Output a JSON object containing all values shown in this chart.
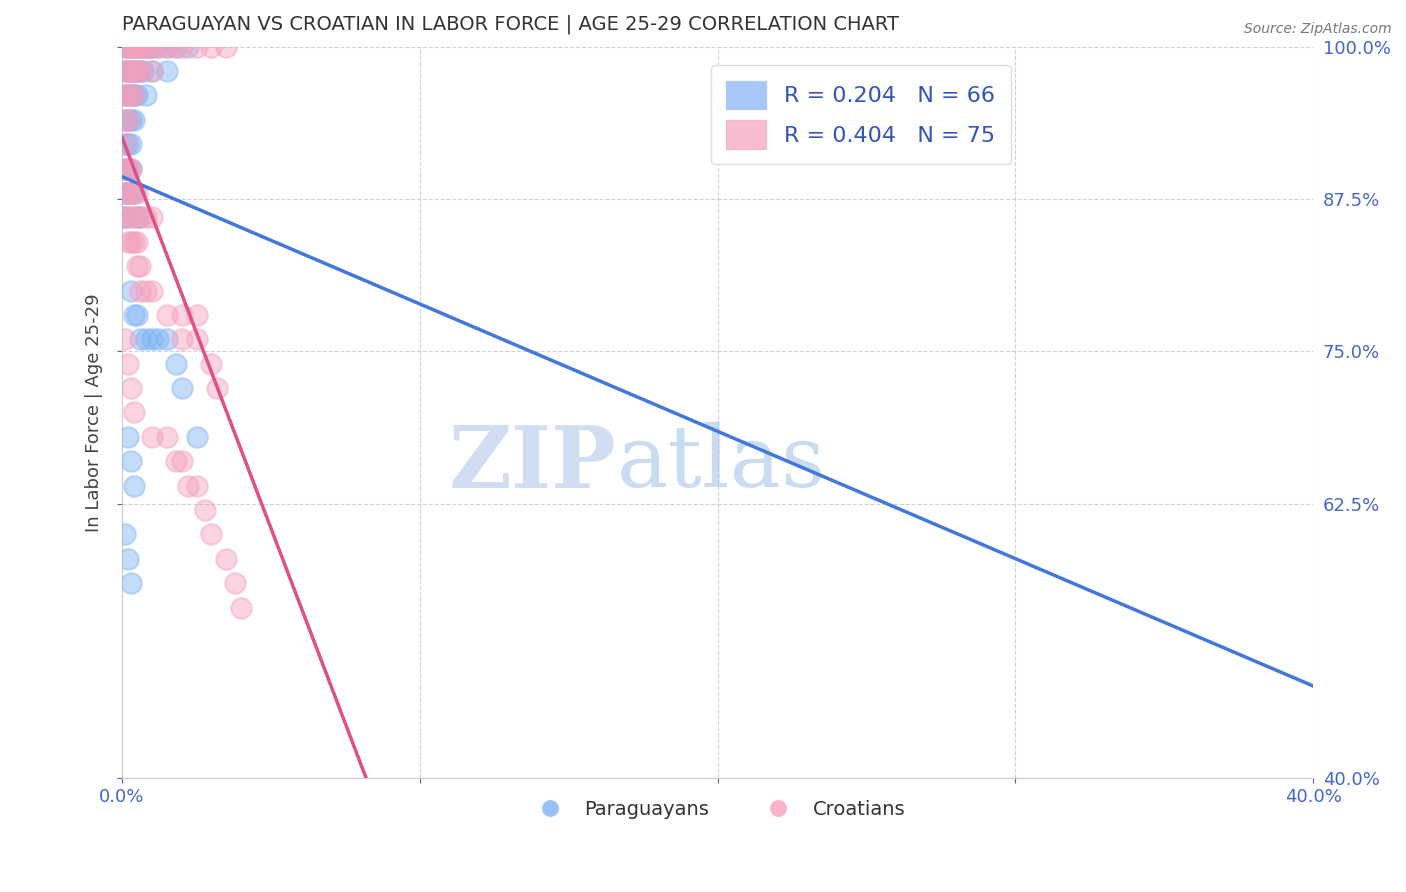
{
  "title": "PARAGUAYAN VS CROATIAN IN LABOR FORCE | AGE 25-29 CORRELATION CHART",
  "source": "Source: ZipAtlas.com",
  "ylabel": "In Labor Force | Age 25-29",
  "xlim": [
    0.0,
    0.4
  ],
  "ylim": [
    0.4,
    1.0
  ],
  "xticks": [
    0.0,
    0.1,
    0.2,
    0.3,
    0.4
  ],
  "yticks": [
    1.0,
    0.875,
    0.75,
    0.625,
    0.4
  ],
  "blue_R": 0.204,
  "blue_N": 66,
  "pink_R": 0.404,
  "pink_N": 75,
  "blue_color": "#7EB3F5",
  "pink_color": "#F5A0BC",
  "blue_line_color": "#4477DD",
  "pink_line_color": "#E05080",
  "blue_label": "Paraguayans",
  "pink_label": "Croatians",
  "legend_text_color": "#3355BB",
  "watermark_zip": "ZIP",
  "watermark_atlas": "atlas",
  "blue_scatter_x": [
    0.001,
    0.001,
    0.001,
    0.001,
    0.001,
    0.001,
    0.001,
    0.001,
    0.002,
    0.002,
    0.002,
    0.002,
    0.002,
    0.002,
    0.003,
    0.003,
    0.003,
    0.003,
    0.003,
    0.004,
    0.004,
    0.004,
    0.004,
    0.005,
    0.005,
    0.005,
    0.006,
    0.006,
    0.007,
    0.007,
    0.008,
    0.008,
    0.009,
    0.01,
    0.01,
    0.012,
    0.015,
    0.015,
    0.018,
    0.022,
    0.001,
    0.001,
    0.002,
    0.002,
    0.003,
    0.003,
    0.004,
    0.005,
    0.006,
    0.003,
    0.004,
    0.005,
    0.006,
    0.008,
    0.01,
    0.012,
    0.015,
    0.018,
    0.02,
    0.025,
    0.002,
    0.003,
    0.004,
    0.001,
    0.002,
    0.003
  ],
  "blue_scatter_y": [
    1.0,
    0.98,
    0.96,
    0.94,
    0.92,
    0.9,
    0.88,
    0.86,
    1.0,
    0.98,
    0.96,
    0.94,
    0.92,
    0.9,
    1.0,
    0.98,
    0.96,
    0.94,
    0.92,
    1.0,
    0.98,
    0.96,
    0.94,
    1.0,
    0.98,
    0.96,
    1.0,
    0.98,
    1.0,
    0.98,
    1.0,
    0.96,
    1.0,
    1.0,
    0.98,
    1.0,
    1.0,
    0.98,
    1.0,
    1.0,
    0.88,
    0.86,
    0.9,
    0.88,
    0.9,
    0.88,
    0.88,
    0.86,
    0.86,
    0.8,
    0.78,
    0.78,
    0.76,
    0.76,
    0.76,
    0.76,
    0.76,
    0.74,
    0.72,
    0.68,
    0.68,
    0.66,
    0.64,
    0.6,
    0.58,
    0.56
  ],
  "pink_scatter_x": [
    0.001,
    0.001,
    0.001,
    0.001,
    0.001,
    0.002,
    0.002,
    0.002,
    0.002,
    0.003,
    0.003,
    0.003,
    0.004,
    0.004,
    0.004,
    0.005,
    0.005,
    0.006,
    0.006,
    0.007,
    0.008,
    0.01,
    0.01,
    0.012,
    0.015,
    0.018,
    0.02,
    0.025,
    0.03,
    0.035,
    0.001,
    0.001,
    0.002,
    0.002,
    0.003,
    0.004,
    0.005,
    0.006,
    0.008,
    0.01,
    0.001,
    0.002,
    0.003,
    0.004,
    0.005,
    0.006,
    0.008,
    0.01,
    0.015,
    0.02,
    0.025,
    0.002,
    0.003,
    0.004,
    0.005,
    0.006,
    0.02,
    0.025,
    0.03,
    0.032,
    0.001,
    0.002,
    0.003,
    0.004,
    0.01,
    0.015,
    0.018,
    0.02,
    0.022,
    0.025,
    0.028,
    0.03,
    0.035,
    0.038,
    0.04
  ],
  "pink_scatter_y": [
    1.0,
    0.98,
    0.96,
    0.94,
    0.92,
    1.0,
    0.98,
    0.96,
    0.94,
    1.0,
    0.98,
    0.96,
    1.0,
    0.98,
    0.96,
    1.0,
    0.98,
    1.0,
    0.98,
    1.0,
    1.0,
    1.0,
    0.98,
    1.0,
    1.0,
    1.0,
    1.0,
    1.0,
    1.0,
    1.0,
    0.9,
    0.88,
    0.9,
    0.88,
    0.9,
    0.88,
    0.88,
    0.86,
    0.86,
    0.86,
    0.86,
    0.84,
    0.84,
    0.84,
    0.82,
    0.8,
    0.8,
    0.8,
    0.78,
    0.78,
    0.78,
    0.88,
    0.86,
    0.86,
    0.84,
    0.82,
    0.76,
    0.76,
    0.74,
    0.72,
    0.76,
    0.74,
    0.72,
    0.7,
    0.68,
    0.68,
    0.66,
    0.66,
    0.64,
    0.64,
    0.62,
    0.6,
    0.58,
    0.56,
    0.54
  ]
}
